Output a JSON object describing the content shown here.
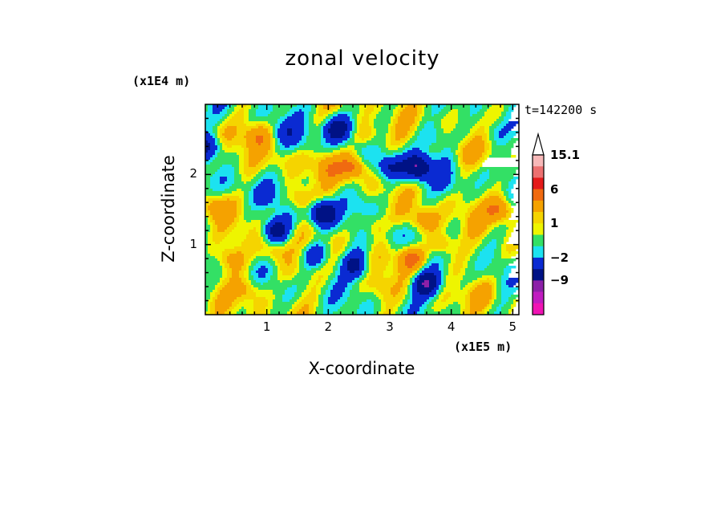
{
  "chart_data": {
    "type": "heatmap",
    "title": "zonal velocity",
    "xlabel": "X-coordinate",
    "ylabel": "Z-coordinate",
    "x_unit": "(x1E5 m)",
    "z_unit": "(x1E4 m)",
    "time_label": "t=142200 s",
    "xlim": [
      0,
      5.1
    ],
    "ylim": [
      0,
      3.0
    ],
    "x_ticks": [
      1,
      2,
      3,
      4,
      5
    ],
    "y_ticks": [
      1,
      2
    ],
    "colorbar": {
      "labels": [
        {
          "value": 15.1,
          "text": "15.1"
        },
        {
          "value": 6,
          "text": "6"
        },
        {
          "value": 1,
          "text": "1"
        },
        {
          "value": -2,
          "text": "−2"
        },
        {
          "value": -9,
          "text": "−9"
        }
      ],
      "levels": [
        {
          "value": 13.0,
          "color": "#f7b8b8"
        },
        {
          "value": 10.0,
          "color": "#ec7070"
        },
        {
          "value": 7.5,
          "color": "#e41a1a"
        },
        {
          "value": 4.5,
          "color": "#f06a10"
        },
        {
          "value": 2.2,
          "color": "#f5a200"
        },
        {
          "value": 1.3,
          "color": "#f5d400"
        },
        {
          "value": 0.6,
          "color": "#eef500"
        },
        {
          "value": -0.5,
          "color": "#33e065"
        },
        {
          "value": -1.5,
          "color": "#1ce2f0"
        },
        {
          "value": -4.0,
          "color": "#0a2ad2"
        },
        {
          "value": -7.5,
          "color": "#001285"
        },
        {
          "value": -10.5,
          "color": "#8c20a8"
        },
        {
          "value": -12.5,
          "color": "#c01cc0"
        },
        {
          "value": -15.0,
          "color": "#f014b4"
        }
      ],
      "top_triangle_color": "#ffffff"
    },
    "field_features": [
      {
        "x": 0.05,
        "z": 2.4,
        "u": -4.5
      },
      {
        "x": 0.15,
        "z": 1.55,
        "u": 3.5
      },
      {
        "x": 0.25,
        "z": 2.6,
        "u": 1.0
      },
      {
        "x": 0.4,
        "z": 0.8,
        "u": 3.0
      },
      {
        "x": 0.55,
        "z": 1.85,
        "u": -1.0
      },
      {
        "x": 0.7,
        "z": 0.35,
        "u": 2.5
      },
      {
        "x": 0.85,
        "z": 2.55,
        "u": 3.5
      },
      {
        "x": 1.0,
        "z": 1.7,
        "u": -2.0
      },
      {
        "x": 1.1,
        "z": 0.9,
        "u": 3.0
      },
      {
        "x": 1.2,
        "z": 2.2,
        "u": 1.5
      },
      {
        "x": 1.15,
        "z": 1.2,
        "u": -5.5
      },
      {
        "x": 1.3,
        "z": 2.6,
        "u": -2.5
      },
      {
        "x": 1.4,
        "z": 0.6,
        "u": 1.5
      },
      {
        "x": 1.55,
        "z": 1.65,
        "u": 3.5
      },
      {
        "x": 1.65,
        "z": 2.45,
        "u": -1.5
      },
      {
        "x": 1.9,
        "z": 1.45,
        "u": -7.5
      },
      {
        "x": 1.8,
        "z": 0.85,
        "u": -4.5
      },
      {
        "x": 2.0,
        "z": 2.1,
        "u": 2.5
      },
      {
        "x": 2.15,
        "z": 2.65,
        "u": -6.0
      },
      {
        "x": 2.2,
        "z": 1.1,
        "u": 0.5
      },
      {
        "x": 2.4,
        "z": 2.1,
        "u": 5.0
      },
      {
        "x": 2.45,
        "z": 0.7,
        "u": -5.0
      },
      {
        "x": 2.55,
        "z": 1.6,
        "u": -1.5
      },
      {
        "x": 2.65,
        "z": 2.55,
        "u": 3.0
      },
      {
        "x": 2.75,
        "z": 1.25,
        "u": 2.5
      },
      {
        "x": 2.85,
        "z": 0.35,
        "u": 1.5
      },
      {
        "x": 3.0,
        "z": 2.1,
        "u": -5.0
      },
      {
        "x": 3.05,
        "z": 1.15,
        "u": -2.0
      },
      {
        "x": 3.2,
        "z": 2.55,
        "u": 0.5
      },
      {
        "x": 3.35,
        "z": 0.8,
        "u": 5.0
      },
      {
        "x": 3.45,
        "z": 2.1,
        "u": -8.0
      },
      {
        "x": 3.55,
        "z": 1.35,
        "u": 4.0
      },
      {
        "x": 3.6,
        "z": 0.45,
        "u": -7.5
      },
      {
        "x": 3.7,
        "z": 2.55,
        "u": -2.0
      },
      {
        "x": 3.85,
        "z": 1.0,
        "u": 3.5
      },
      {
        "x": 3.95,
        "z": 1.85,
        "u": -1.5
      },
      {
        "x": 4.05,
        "z": 0.45,
        "u": -1.0
      },
      {
        "x": 4.2,
        "z": 2.3,
        "u": 2.0
      },
      {
        "x": 4.4,
        "z": 1.4,
        "u": 1.0
      },
      {
        "x": 4.5,
        "z": 0.3,
        "u": 2.0
      },
      {
        "x": 4.7,
        "z": 2.6,
        "u": -2.5
      },
      {
        "x": 4.8,
        "z": 1.5,
        "u": 4.5
      },
      {
        "x": 5.0,
        "z": 0.9,
        "u": 1.0
      },
      {
        "x": 5.05,
        "z": 2.2,
        "u": -1.0
      }
    ]
  }
}
